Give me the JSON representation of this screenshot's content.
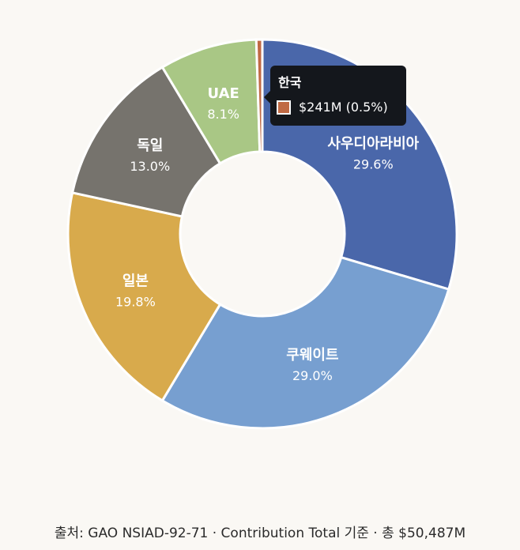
{
  "chart_data": {
    "type": "pie",
    "donut": true,
    "categories": [
      "사우디아라비아",
      "쿠웨이트",
      "일본",
      "독일",
      "UAE",
      "한국"
    ],
    "values": [
      29.6,
      29.0,
      19.8,
      13.0,
      8.1,
      0.5
    ],
    "value_labels": [
      "29.6%",
      "29.0%",
      "19.8%",
      "13.0%",
      "8.1%",
      ""
    ],
    "colors": [
      "#4a67aa",
      "#779fd0",
      "#d8aa4c",
      "#76736d",
      "#a9c785",
      "#c06a44"
    ],
    "tooltip": {
      "title": "한국",
      "value": "$241M (0.5%)",
      "color": "#c06a44"
    }
  },
  "footer": {
    "source_text": "출처: GAO NSIAD-92-71 · Contribution Total 기준 · 총 $50,487M"
  }
}
